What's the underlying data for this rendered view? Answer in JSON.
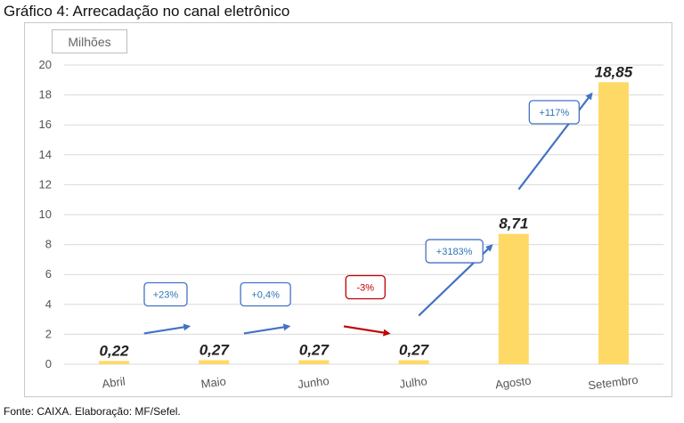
{
  "title": "Gráfico 4: Arrecadação no canal eletrônico",
  "source": "Fonte: CAIXA. Elaboração: MF/Sefel.",
  "colors": {
    "bar": "#FFD966",
    "grid": "#d9d9d9",
    "arrow_up": "#4472C4",
    "arrow_down": "#C00000",
    "pct_up": "#2E75B6",
    "pct_down": "#C00000"
  },
  "chart_data": {
    "type": "bar",
    "unit_label": "Milhões",
    "categories": [
      "Abril",
      "Maio",
      "Junho",
      "Julho",
      "Agosto",
      "Setembro"
    ],
    "values": [
      0.22,
      0.27,
      0.27,
      0.27,
      8.71,
      18.85
    ],
    "value_labels": [
      "0,22",
      "0,27",
      "0,27",
      "0,27",
      "8,71",
      "18,85"
    ],
    "ylim": [
      0,
      20
    ],
    "yticks": [
      0,
      2,
      4,
      6,
      8,
      10,
      12,
      14,
      16,
      18,
      20
    ],
    "grid": true,
    "annotations": [
      {
        "text": "+23%",
        "between": [
          0,
          1
        ],
        "direction": "up"
      },
      {
        "text": "+0,4%",
        "between": [
          1,
          2
        ],
        "direction": "up"
      },
      {
        "text": "-3%",
        "between": [
          2,
          3
        ],
        "direction": "down"
      },
      {
        "text": "+3183%",
        "between": [
          3,
          4
        ],
        "direction": "up"
      },
      {
        "text": "+117%",
        "between": [
          4,
          5
        ],
        "direction": "up"
      }
    ]
  }
}
